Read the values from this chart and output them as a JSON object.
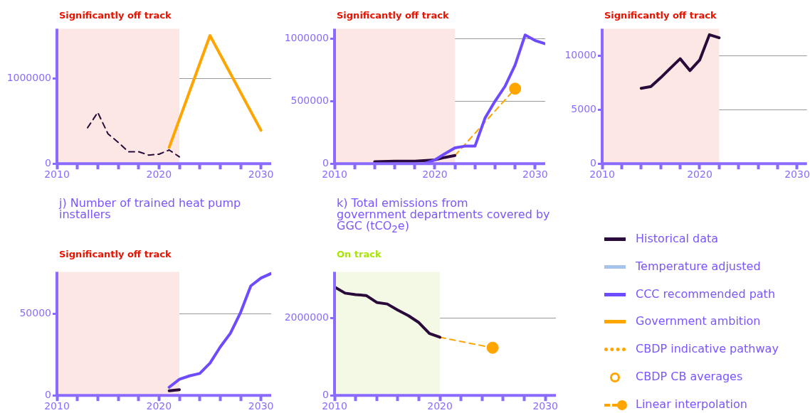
{
  "chart_data": [
    {
      "type": "line",
      "subtitle": "Significantly off track",
      "xlim": [
        2010,
        2031
      ],
      "xticks": [
        2010,
        {
          "value": 2012,
          "label": null
        },
        {
          "value": 2014,
          "label": null
        },
        {
          "value": 2016,
          "label": null
        },
        {
          "value": 2018,
          "label": null
        },
        2020,
        {
          "value": 2022,
          "label": null
        },
        {
          "value": 2024,
          "label": null
        },
        {
          "value": 2026,
          "label": null
        },
        {
          "value": 2028,
          "label": null
        },
        2030
      ],
      "ylim": [
        0,
        1580000
      ],
      "yticks": [
        0,
        1000000
      ],
      "grid": "y",
      "bands": [
        {
          "axis": "x",
          "from": 2010,
          "to": 2022,
          "color": "#fde7e5"
        }
      ],
      "series": [
        {
          "color": "#2a0a3a",
          "line_style": "dashed",
          "x": [
            2013,
            2014,
            2015,
            2016,
            2017,
            2018,
            2019,
            2020,
            2021,
            2022
          ],
          "values": [
            420000,
            600000,
            350000,
            250000,
            140000,
            140000,
            100000,
            110000,
            160000,
            80000
          ]
        },
        {
          "color": "#ffa500",
          "x": [
            2021,
            2025,
            2030
          ],
          "values": [
            190000,
            1500000,
            390000
          ]
        }
      ]
    },
    {
      "type": "line",
      "subtitle": "Significantly off track",
      "xlim": [
        2010,
        2031
      ],
      "xticks": [
        2010,
        {
          "value": 2012,
          "label": null
        },
        {
          "value": 2014,
          "label": null
        },
        {
          "value": 2016,
          "label": null
        },
        {
          "value": 2018,
          "label": null
        },
        2020,
        {
          "value": 2022,
          "label": null
        },
        {
          "value": 2024,
          "label": null
        },
        {
          "value": 2026,
          "label": null
        },
        {
          "value": 2028,
          "label": null
        },
        2030
      ],
      "ylim": [
        0,
        1080000
      ],
      "yticks": [
        0,
        500000,
        1000000
      ],
      "grid": "y",
      "bands": [
        {
          "axis": "x",
          "from": 2010,
          "to": 2022,
          "color": "#fde7e5"
        }
      ],
      "series": [
        {
          "color": "#6e4bff",
          "x": [
            2019,
            2020,
            2021,
            2022,
            2023,
            2024,
            2025,
            2026,
            2027,
            2028,
            2029,
            2030,
            2031
          ],
          "values": [
            0,
            30000,
            80000,
            126000,
            140000,
            140000,
            365000,
            500000,
            620000,
            790000,
            1030000,
            985000,
            960000
          ]
        },
        {
          "color": "#2a0a3a",
          "x": [
            2014,
            2016,
            2018,
            2020,
            2021,
            2022
          ],
          "values": [
            16000,
            20000,
            20000,
            30000,
            50000,
            65000
          ]
        },
        {
          "color": "#ffa500",
          "line_style": "dashed",
          "x": [
            2022,
            2028
          ],
          "values": [
            65000,
            600000
          ]
        },
        {
          "type": "scatter",
          "color": "#ffa500",
          "marker": "circle",
          "x": [
            2028
          ],
          "values": [
            600000
          ]
        }
      ]
    },
    {
      "type": "line",
      "subtitle": "Significantly off track",
      "xlim": [
        2010,
        2031
      ],
      "xticks": [
        2010,
        {
          "value": 2012,
          "label": null
        },
        {
          "value": 2014,
          "label": null
        },
        {
          "value": 2016,
          "label": null
        },
        {
          "value": 2018,
          "label": null
        },
        2020,
        {
          "value": 2022,
          "label": null
        },
        {
          "value": 2024,
          "label": null
        },
        {
          "value": 2026,
          "label": null
        },
        {
          "value": 2028,
          "label": null
        },
        2030
      ],
      "ylim": [
        0,
        12500
      ],
      "yticks": [
        0,
        5000,
        10000
      ],
      "grid": "y",
      "bands": [
        {
          "axis": "x",
          "from": 2010,
          "to": 2022,
          "color": "#fde7e5"
        }
      ],
      "series": [
        {
          "color": "#2a0a3a",
          "x": [
            2014,
            2015,
            2016,
            2017,
            2018,
            2019,
            2020,
            2021,
            2022
          ],
          "values": [
            6980,
            7140,
            7960,
            8850,
            9720,
            8620,
            9600,
            11940,
            11660
          ]
        }
      ]
    },
    {
      "type": "line",
      "title": "j) Number of trained heat pump installers",
      "subtitle": "Significantly off track",
      "xlim": [
        2010,
        2031
      ],
      "xticks": [
        2010,
        {
          "value": 2012,
          "label": null
        },
        {
          "value": 2014,
          "label": null
        },
        {
          "value": 2016,
          "label": null
        },
        {
          "value": 2018,
          "label": null
        },
        2020,
        {
          "value": 2022,
          "label": null
        },
        {
          "value": 2024,
          "label": null
        },
        {
          "value": 2026,
          "label": null
        },
        {
          "value": 2028,
          "label": null
        },
        2030
      ],
      "ylim": [
        0,
        76000
      ],
      "yticks": [
        0,
        50000
      ],
      "grid": "y",
      "bands": [
        {
          "axis": "x",
          "from": 2010,
          "to": 2022,
          "color": "#fde7e5"
        }
      ],
      "series": [
        {
          "color": "#6e4bff",
          "x": [
            2021,
            2022,
            2023,
            2024,
            2025,
            2026,
            2027,
            2028,
            2029,
            2030,
            2031
          ],
          "values": [
            5000,
            9900,
            12000,
            13500,
            19800,
            29700,
            38200,
            51000,
            67300,
            72200,
            75000
          ]
        },
        {
          "color": "#2a0a3a",
          "x": [
            2021,
            2022
          ],
          "values": [
            2800,
            3500
          ]
        }
      ]
    },
    {
      "type": "line",
      "title": "k) Total emissions from\ngovernment departments covered by GGC (tCO$_{2}$e)",
      "subtitle": "On track",
      "xlim": [
        2010,
        2031
      ],
      "xticks": [
        2010,
        {
          "value": 2012,
          "label": null
        },
        {
          "value": 2014,
          "label": null
        },
        {
          "value": 2016,
          "label": null
        },
        {
          "value": 2018,
          "label": null
        },
        2020,
        {
          "value": 2022,
          "label": null
        },
        {
          "value": 2024,
          "label": null
        },
        {
          "value": 2026,
          "label": null
        },
        {
          "value": 2028,
          "label": null
        },
        2030
      ],
      "ylim": [
        0,
        3190000
      ],
      "yticks": [
        0,
        2000000
      ],
      "grid": "y",
      "bands": [
        {
          "axis": "x",
          "from": 2010,
          "to": 2020,
          "color": "#f4f9e6"
        }
      ],
      "series": [
        {
          "color": "#2a0a3a",
          "x": [
            2010,
            2011,
            2012,
            2013,
            2014,
            2015,
            2016,
            2017,
            2018,
            2019,
            2020
          ],
          "values": [
            2800000,
            2640000,
            2600000,
            2580000,
            2400000,
            2360000,
            2200000,
            2060000,
            1880000,
            1600000,
            1500000
          ]
        },
        {
          "color": "#ffa500",
          "line_style": "dashed",
          "x": [
            2020,
            2025
          ],
          "values": [
            1500000,
            1230000
          ]
        },
        {
          "type": "scatter",
          "color": "#ffa500",
          "marker": "circle",
          "x": [
            2025
          ],
          "values": [
            1230000
          ]
        }
      ]
    },
    {
      "type": "other",
      "annotations": [
        "Historical data",
        "Temperature adjusted",
        "CCC recommended path",
        "Government ambition",
        "CBDP indicative pathway",
        "CBDP CB averages",
        "Linear interpolation"
      ]
    }
  ]
}
